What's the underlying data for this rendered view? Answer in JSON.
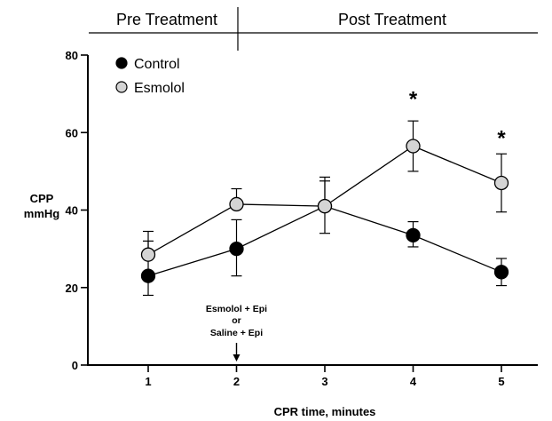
{
  "chart_data": {
    "type": "line",
    "phase_labels": [
      "Pre Treatment",
      "Post Treatment"
    ],
    "ylabel_lines": [
      "CPP",
      "mmHg"
    ],
    "xlabel": "CPR time, minutes",
    "x": [
      1,
      2,
      3,
      4,
      5
    ],
    "x_tick_labels": [
      "1",
      "2",
      "3",
      "4",
      "5"
    ],
    "ylim": [
      0,
      80
    ],
    "y_ticks": [
      0,
      20,
      40,
      60,
      80
    ],
    "y_tick_labels": [
      "0",
      "20",
      "40",
      "60",
      "80"
    ],
    "series": [
      {
        "name": "Control",
        "marker_color": "#000000",
        "values": [
          23,
          30,
          41,
          33.5,
          24
        ],
        "error_upper": [
          32,
          37.5,
          47.5,
          37,
          27.5
        ],
        "error_lower": [
          18,
          23,
          34,
          30.5,
          20.5
        ]
      },
      {
        "name": "Esmolol",
        "marker_color": "#d4d4d4",
        "values": [
          28.5,
          41.5,
          41,
          56.5,
          47
        ],
        "error_upper": [
          34.5,
          45.5,
          48.5,
          63,
          54.5
        ],
        "error_lower": [
          28.5,
          41.5,
          41,
          50,
          39.5
        ]
      }
    ],
    "significance_markers": [
      {
        "x": 4,
        "y": 70,
        "text": "*"
      },
      {
        "x": 5,
        "y": 60,
        "text": "*"
      }
    ],
    "annotation": {
      "lines": [
        "Esmolol + Epi",
        "or",
        "Saline + Epi"
      ],
      "x": 2,
      "arrow": "down-arrow-icon"
    },
    "legend_placement": "top-left",
    "grid": false
  }
}
